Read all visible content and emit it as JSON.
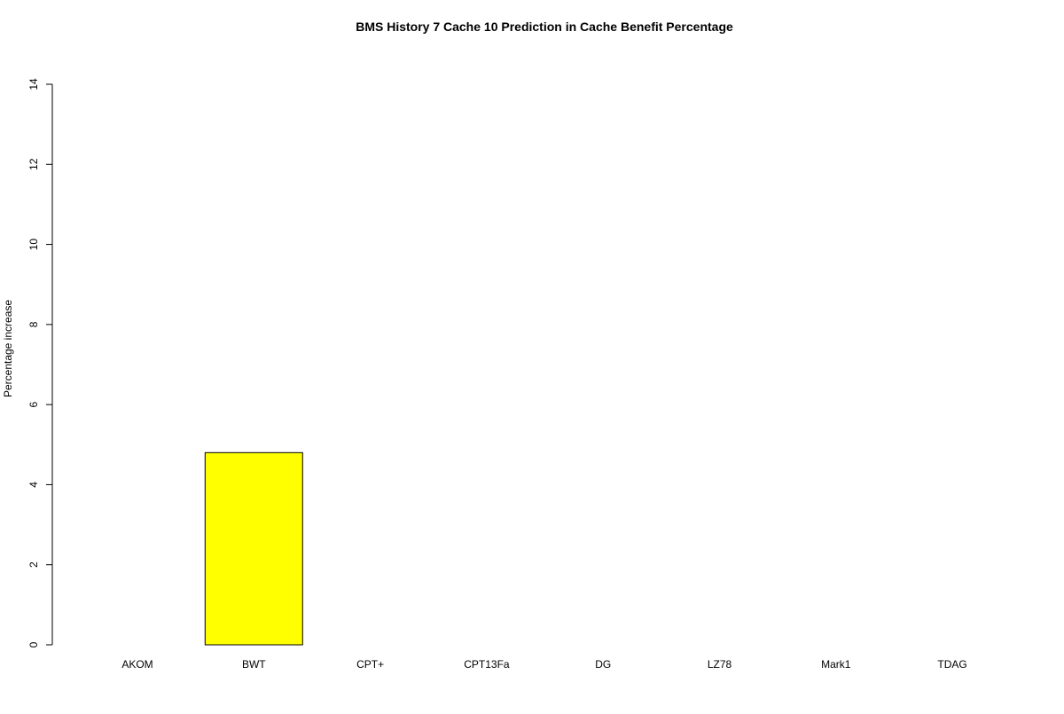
{
  "chart_data": {
    "type": "bar",
    "title": "BMS  History  7  Cache  10 Prediction in Cache Benefit Percentage",
    "xlabel": "",
    "ylabel": "Percentage increase",
    "categories": [
      "AKOM",
      "BWT",
      "CPT+",
      "CPT13Fa",
      "DG",
      "LZ78",
      "Mark1",
      "TDAG"
    ],
    "values": [
      0,
      4.8,
      0,
      0,
      0,
      0,
      0,
      0
    ],
    "ylim": [
      0,
      14
    ],
    "yticks": [
      0,
      2,
      4,
      6,
      8,
      10,
      12,
      14
    ],
    "grid": false,
    "bar_color": "#ffff00",
    "bar_border_color": "#000000"
  }
}
